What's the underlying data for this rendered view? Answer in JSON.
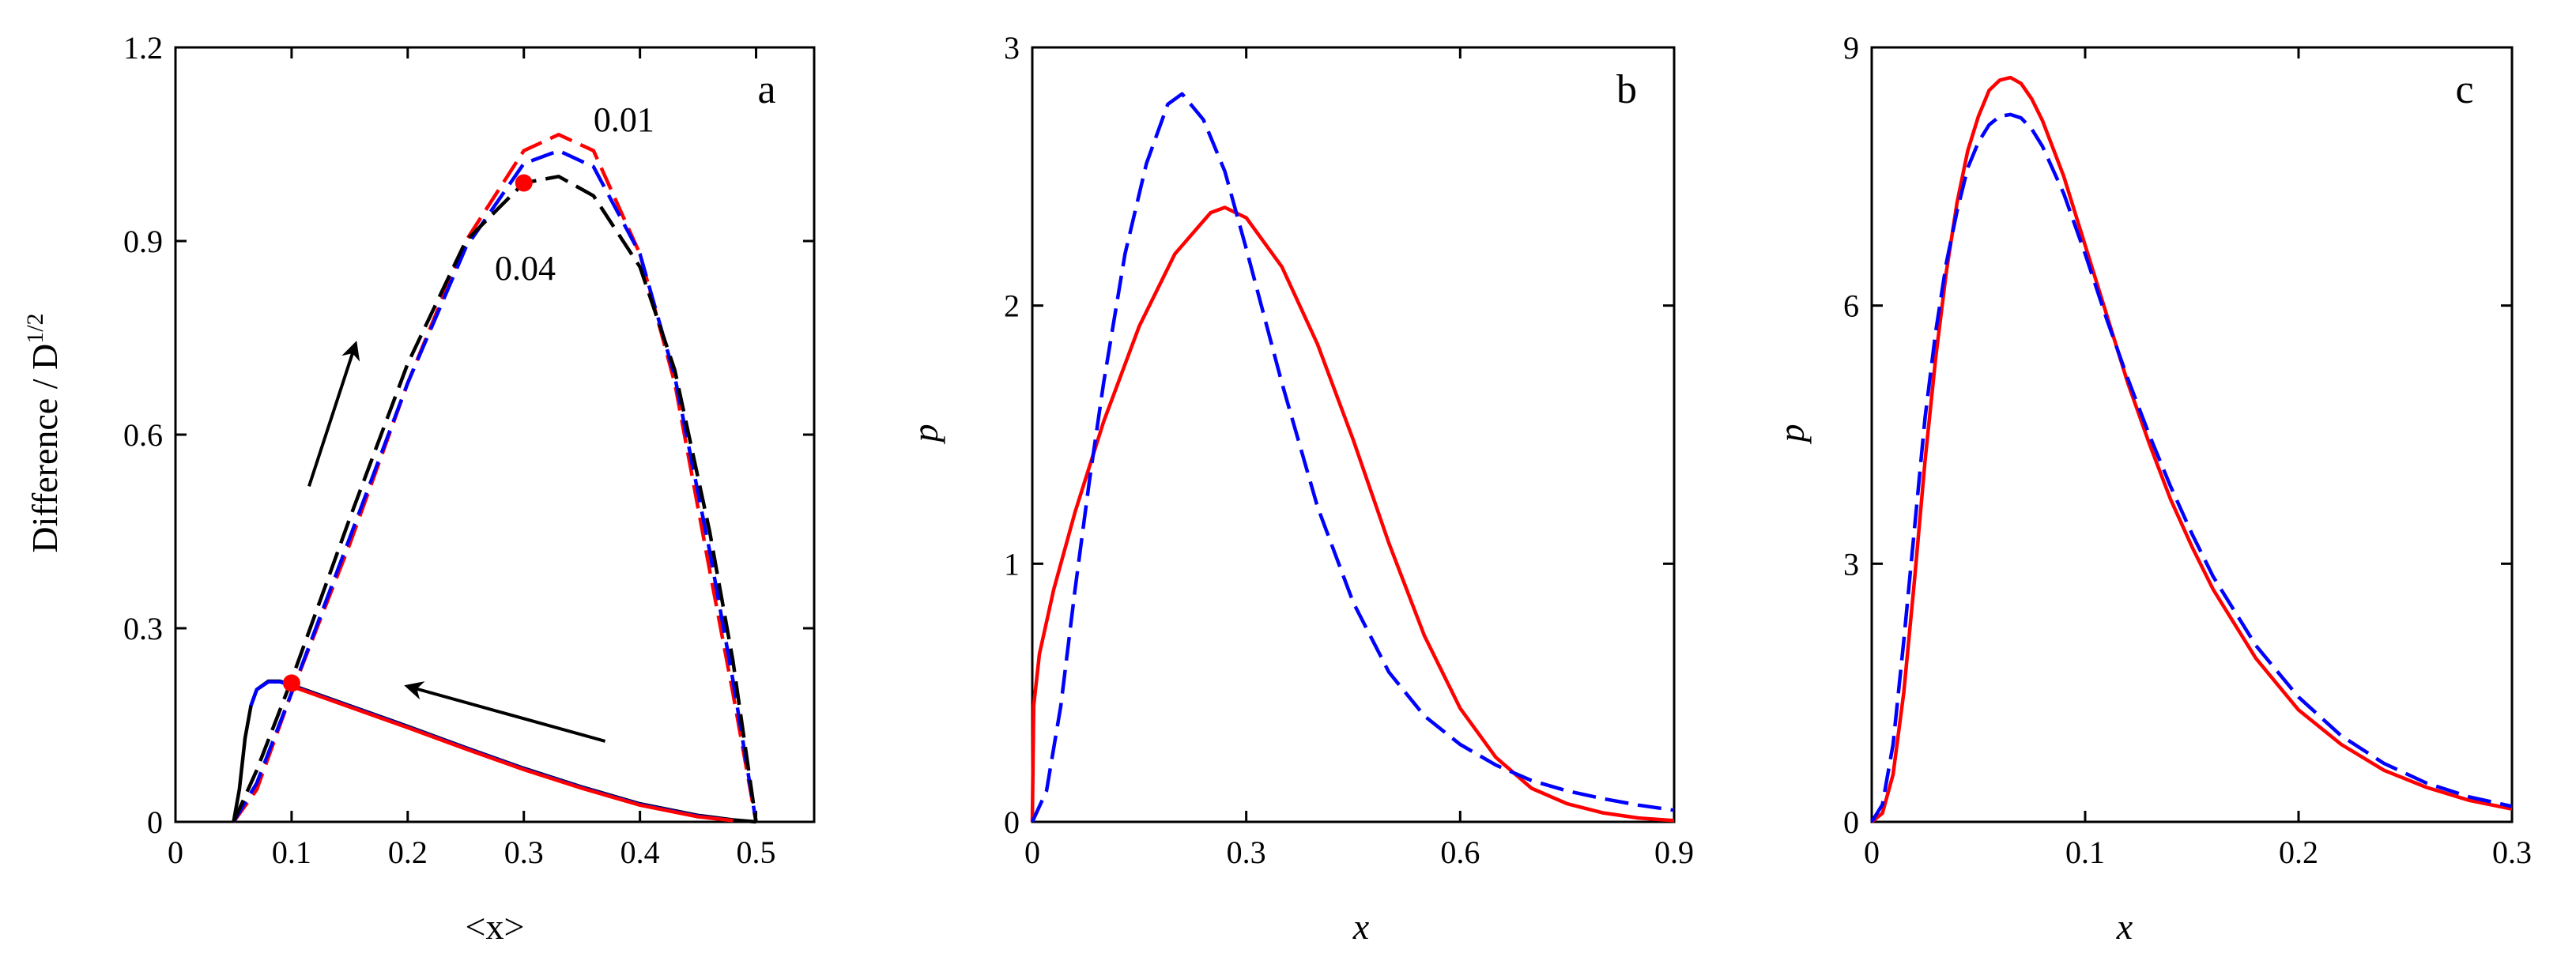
{
  "chart_data": [
    {
      "type": "line",
      "panel_label": "a",
      "xlabel": "<x>",
      "ylabel": "Difference / D",
      "ylabel_superscript": "1/2",
      "xlim": [
        0,
        0.55
      ],
      "ylim": [
        0,
        1.2
      ],
      "xticks": [
        0,
        0.1,
        0.2,
        0.3,
        0.4,
        0.5
      ],
      "xtick_labels": [
        "0",
        "0.1",
        "0.2",
        "0.3",
        "0.4",
        "0.5"
      ],
      "yticks": [
        0,
        0.3,
        0.6,
        0.9,
        1.2
      ],
      "ytick_labels": [
        "0",
        "0.3",
        "0.6",
        "0.9",
        "1.2"
      ],
      "series": [
        {
          "color": "#ff0000",
          "style": "dash",
          "x": [
            0.05,
            0.07,
            0.1,
            0.15,
            0.2,
            0.25,
            0.3,
            0.33,
            0.36,
            0.4,
            0.43,
            0.46,
            0.48,
            0.5
          ],
          "y": [
            0,
            0.05,
            0.2,
            0.43,
            0.68,
            0.9,
            1.04,
            1.065,
            1.04,
            0.88,
            0.68,
            0.39,
            0.2,
            0
          ]
        },
        {
          "color": "#0000ff",
          "style": "dash",
          "x": [
            0.05,
            0.07,
            0.1,
            0.15,
            0.2,
            0.25,
            0.3,
            0.33,
            0.36,
            0.4,
            0.43,
            0.46,
            0.48,
            0.5
          ],
          "y": [
            0,
            0.06,
            0.2,
            0.44,
            0.68,
            0.89,
            1.02,
            1.04,
            1.015,
            0.88,
            0.69,
            0.42,
            0.22,
            0
          ]
        },
        {
          "color": "#000000",
          "style": "dash",
          "x": [
            0.05,
            0.07,
            0.1,
            0.15,
            0.2,
            0.25,
            0.3,
            0.33,
            0.36,
            0.4,
            0.43,
            0.46,
            0.48,
            0.5
          ],
          "y": [
            0,
            0.08,
            0.22,
            0.47,
            0.71,
            0.9,
            0.99,
            1.0,
            0.97,
            0.86,
            0.7,
            0.45,
            0.25,
            0
          ]
        },
        {
          "color": "#000000",
          "style": "solid",
          "x": [
            0.05,
            0.055,
            0.06,
            0.065,
            0.07,
            0.08,
            0.09,
            0.1,
            0.15,
            0.2,
            0.25,
            0.3,
            0.35,
            0.4,
            0.45,
            0.48,
            0.5
          ],
          "y": [
            0,
            0.05,
            0.13,
            0.18,
            0.205,
            0.218,
            0.218,
            0.212,
            0.18,
            0.148,
            0.115,
            0.083,
            0.054,
            0.028,
            0.01,
            0.003,
            0
          ]
        },
        {
          "color": "#0000ff",
          "style": "solid",
          "x": [
            0.065,
            0.07,
            0.08,
            0.09,
            0.1,
            0.15,
            0.2,
            0.25,
            0.3,
            0.35,
            0.4,
            0.45,
            0.48
          ],
          "y": [
            0.18,
            0.205,
            0.217,
            0.217,
            0.211,
            0.179,
            0.147,
            0.114,
            0.082,
            0.053,
            0.027,
            0.009,
            0.002
          ]
        },
        {
          "color": "#ff0000",
          "style": "solid",
          "x": [
            0.1,
            0.15,
            0.2,
            0.25,
            0.3,
            0.35,
            0.4,
            0.45,
            0.48
          ],
          "y": [
            0.21,
            0.178,
            0.146,
            0.113,
            0.081,
            0.052,
            0.026,
            0.008,
            0.002
          ]
        }
      ],
      "points": [
        {
          "x": 0.3,
          "y": 0.99,
          "color": "#ff0000"
        },
        {
          "x": 0.1,
          "y": 0.215,
          "color": "#ff0000"
        }
      ],
      "annotations": [
        {
          "text": "0.01",
          "x": 0.36,
          "y": 1.07
        },
        {
          "text": "0.04",
          "x": 0.275,
          "y": 0.84
        }
      ],
      "arrows": [
        {
          "from": [
            0.115,
            0.52
          ],
          "to": [
            0.155,
            0.74
          ]
        },
        {
          "from": [
            0.37,
            0.125
          ],
          "to": [
            0.2,
            0.21
          ]
        }
      ]
    },
    {
      "type": "line",
      "panel_label": "b",
      "xlabel": "x",
      "ylabel": "p",
      "xlim": [
        0,
        0.9
      ],
      "ylim": [
        0,
        3
      ],
      "xticks": [
        0,
        0.3,
        0.6,
        0.9
      ],
      "xtick_labels": [
        "0",
        "0.3",
        "0.6",
        "0.9"
      ],
      "yticks": [
        0,
        1,
        2,
        3
      ],
      "ytick_labels": [
        "0",
        "1",
        "2",
        "3"
      ],
      "series": [
        {
          "color": "#ff0000",
          "style": "solid",
          "x": [
            0,
            0.002,
            0.01,
            0.03,
            0.06,
            0.1,
            0.15,
            0.2,
            0.25,
            0.27,
            0.3,
            0.35,
            0.4,
            0.45,
            0.5,
            0.55,
            0.6,
            0.65,
            0.7,
            0.75,
            0.8,
            0.85,
            0.9
          ],
          "y": [
            0,
            0.45,
            0.65,
            0.9,
            1.2,
            1.55,
            1.92,
            2.2,
            2.36,
            2.38,
            2.34,
            2.15,
            1.85,
            1.48,
            1.08,
            0.72,
            0.44,
            0.25,
            0.13,
            0.07,
            0.035,
            0.015,
            0.005
          ]
        },
        {
          "color": "#0000ff",
          "style": "dash",
          "x": [
            0,
            0.02,
            0.04,
            0.06,
            0.08,
            0.1,
            0.13,
            0.16,
            0.19,
            0.21,
            0.24,
            0.27,
            0.3,
            0.35,
            0.4,
            0.45,
            0.5,
            0.55,
            0.6,
            0.65,
            0.7,
            0.75,
            0.8,
            0.85,
            0.9
          ],
          "y": [
            0,
            0.12,
            0.45,
            0.9,
            1.32,
            1.7,
            2.2,
            2.55,
            2.78,
            2.82,
            2.72,
            2.52,
            2.22,
            1.7,
            1.22,
            0.85,
            0.58,
            0.41,
            0.3,
            0.22,
            0.16,
            0.12,
            0.09,
            0.065,
            0.045
          ]
        }
      ]
    },
    {
      "type": "line",
      "panel_label": "c",
      "xlabel": "x",
      "ylabel": "p",
      "xlim": [
        0,
        0.3
      ],
      "ylim": [
        0,
        9
      ],
      "xticks": [
        0,
        0.1,
        0.2,
        0.3
      ],
      "xtick_labels": [
        "0",
        "0.1",
        "0.2",
        "0.3"
      ],
      "yticks": [
        0,
        3,
        6,
        9
      ],
      "ytick_labels": [
        "0",
        "3",
        "6",
        "9"
      ],
      "series": [
        {
          "color": "#ff0000",
          "style": "solid",
          "x": [
            0,
            0.005,
            0.01,
            0.015,
            0.02,
            0.025,
            0.03,
            0.035,
            0.04,
            0.045,
            0.05,
            0.055,
            0.06,
            0.065,
            0.07,
            0.075,
            0.08,
            0.09,
            0.1,
            0.11,
            0.12,
            0.13,
            0.14,
            0.15,
            0.16,
            0.18,
            0.2,
            0.22,
            0.24,
            0.26,
            0.28,
            0.3
          ],
          "y": [
            0,
            0.1,
            0.55,
            1.5,
            2.8,
            4.2,
            5.4,
            6.4,
            7.2,
            7.8,
            8.2,
            8.5,
            8.62,
            8.65,
            8.58,
            8.4,
            8.15,
            7.5,
            6.7,
            5.9,
            5.1,
            4.4,
            3.75,
            3.2,
            2.7,
            1.9,
            1.3,
            0.9,
            0.6,
            0.4,
            0.25,
            0.15
          ]
        },
        {
          "color": "#0000ff",
          "style": "dash",
          "x": [
            0,
            0.005,
            0.01,
            0.015,
            0.02,
            0.025,
            0.03,
            0.035,
            0.04,
            0.045,
            0.05,
            0.055,
            0.06,
            0.065,
            0.07,
            0.075,
            0.08,
            0.09,
            0.1,
            0.11,
            0.12,
            0.13,
            0.14,
            0.15,
            0.16,
            0.18,
            0.2,
            0.22,
            0.24,
            0.26,
            0.28,
            0.3
          ],
          "y": [
            0,
            0.2,
            0.9,
            2.1,
            3.4,
            4.7,
            5.7,
            6.5,
            7.1,
            7.6,
            7.9,
            8.1,
            8.2,
            8.22,
            8.18,
            8.05,
            7.85,
            7.3,
            6.6,
            5.85,
            5.15,
            4.5,
            3.9,
            3.35,
            2.85,
            2.05,
            1.45,
            1.0,
            0.68,
            0.45,
            0.29,
            0.18
          ]
        }
      ]
    }
  ]
}
